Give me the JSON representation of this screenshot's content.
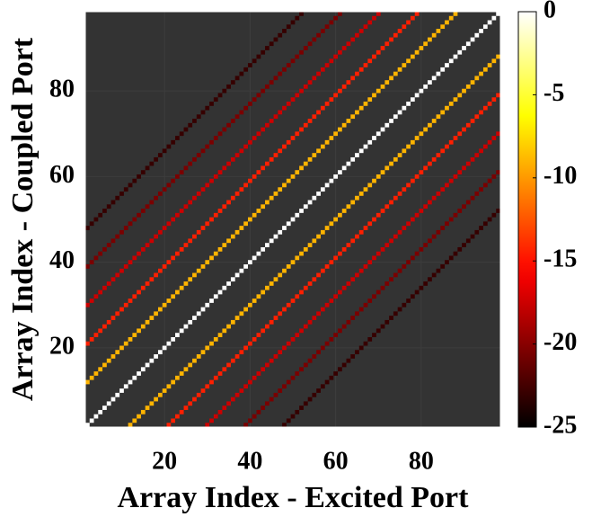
{
  "chart_data": {
    "type": "heatmap",
    "x_label": "Array Index - Excited Port",
    "y_label": "Array Index - Coupled Port",
    "xlim": [
      1.5,
      98.5
    ],
    "ylim": [
      1.5,
      98.5
    ],
    "xticks": [
      20,
      40,
      60,
      80
    ],
    "yticks": [
      20,
      40,
      60,
      80
    ],
    "diagonals": {
      "offsets": [
        -46,
        -37,
        -28,
        -19,
        -10,
        0,
        10,
        19,
        28,
        37,
        46
      ],
      "values": [
        -23,
        -20.5,
        -17.5,
        -14.5,
        -9,
        0,
        -9,
        -14.5,
        -17.5,
        -20.5,
        -23
      ]
    },
    "background_color": "#333333",
    "colormap": "hot",
    "clim": [
      -25,
      0
    ],
    "cticks": [
      0,
      -5,
      -10,
      -15,
      -20,
      -25
    ]
  }
}
